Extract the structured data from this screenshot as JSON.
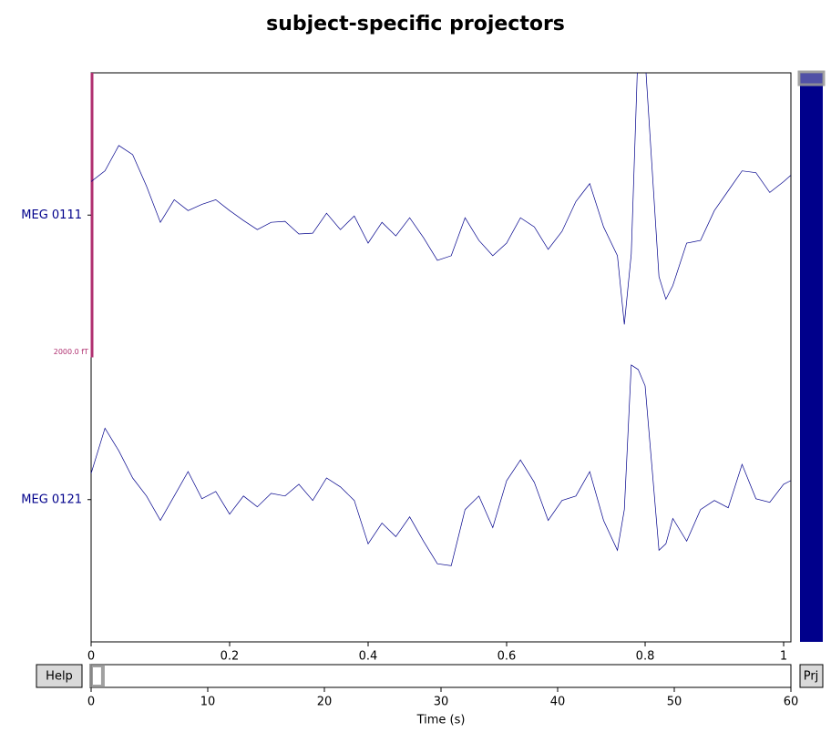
{
  "chart_data": {
    "type": "line",
    "title": "subject-specific projectors",
    "x": [
      0,
      0.02,
      0.04,
      0.06,
      0.08,
      0.1,
      0.12,
      0.14,
      0.16,
      0.18,
      0.2,
      0.22,
      0.24,
      0.26,
      0.28,
      0.3,
      0.32,
      0.34,
      0.36,
      0.38,
      0.4,
      0.42,
      0.44,
      0.46,
      0.48,
      0.5,
      0.52,
      0.54,
      0.56,
      0.58,
      0.6,
      0.62,
      0.64,
      0.66,
      0.68,
      0.7,
      0.72,
      0.74,
      0.76,
      0.77,
      0.78,
      0.79,
      0.8,
      0.82,
      0.83,
      0.84,
      0.86,
      0.88,
      0.9,
      0.92,
      0.94,
      0.96,
      0.98,
      1.0,
      1.01
    ],
    "series": [
      {
        "name": "MEG 0111",
        "color": "#00008b",
        "values": [
          235,
          311,
          489,
          425,
          203,
          -51,
          108,
          32,
          76,
          108,
          32,
          -38,
          -102,
          -51,
          -44,
          -133,
          -127,
          13,
          -102,
          -6,
          -197,
          -51,
          -146,
          -19,
          -159,
          -318,
          -286,
          -19,
          -178,
          -286,
          -197,
          -19,
          -83,
          -241,
          -114,
          95,
          222,
          -83,
          -286,
          -768,
          -273,
          1200,
          1100,
          -432,
          -591,
          -495,
          -197,
          -178,
          32,
          171,
          311,
          298,
          159,
          235,
          279
        ]
      },
      {
        "name": "MEG 0121",
        "color": "#00008b",
        "values": [
          184,
          502,
          343,
          152,
          25,
          -146,
          25,
          197,
          6,
          57,
          -102,
          25,
          -51,
          44,
          25,
          108,
          -6,
          152,
          89,
          -6,
          -311,
          -165,
          -260,
          -121,
          -292,
          -451,
          -464,
          -70,
          25,
          -197,
          133,
          279,
          121,
          -146,
          -6,
          25,
          197,
          -146,
          -356,
          -70,
          946,
          914,
          800,
          -356,
          -311,
          -133,
          -292,
          -70,
          -6,
          -57,
          248,
          6,
          -19,
          108,
          133
        ]
      }
    ],
    "xlim": [
      0,
      1.0105
    ],
    "xticks": [
      0,
      0.2,
      0.4,
      0.6,
      0.8,
      1
    ],
    "scale_bar": {
      "value": 2000,
      "label": "2000.0 fT",
      "color": "#b03070"
    },
    "scrollbar": {
      "xlim": [
        0,
        60
      ],
      "xticks": [
        0,
        10,
        20,
        30,
        40,
        50,
        60
      ],
      "xlabel": "Time (s)"
    },
    "buttons": {
      "help": "Help",
      "projectors": "Prj"
    }
  }
}
